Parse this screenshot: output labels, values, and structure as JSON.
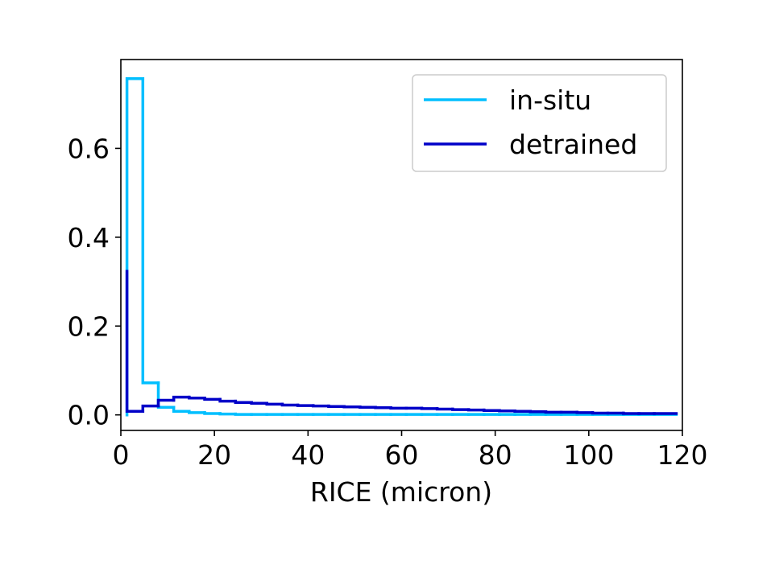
{
  "chart_data": {
    "type": "line",
    "subtype": "step-histogram",
    "title": "",
    "xlabel": "RICE (micron)",
    "ylabel": "",
    "xlim": [
      0,
      120
    ],
    "ylim": [
      -0.035,
      0.8
    ],
    "x_ticks": [
      0,
      20,
      40,
      60,
      80,
      100,
      120
    ],
    "x_tick_labels": [
      "0",
      "20",
      "40",
      "60",
      "80",
      "100",
      "120"
    ],
    "y_ticks": [
      0.0,
      0.2,
      0.4,
      0.6
    ],
    "y_tick_labels": [
      "0.0",
      "0.2",
      "0.4",
      "0.6"
    ],
    "grid": false,
    "legend_position": "top-right",
    "bin_edges": [
      1.3,
      4.7,
      8.0,
      11.3,
      14.6,
      17.9,
      21.2,
      24.5,
      27.9,
      31.2,
      34.5,
      37.8,
      41.1,
      44.4,
      47.7,
      51.1,
      54.4,
      57.7,
      61.0,
      64.3,
      67.6,
      70.9,
      74.3,
      77.6,
      80.9,
      84.2,
      87.5,
      90.8,
      94.1,
      97.5,
      100.8,
      104.1,
      107.4,
      110.7,
      114.0,
      118.7
    ],
    "series": [
      {
        "name": "in-situ",
        "color": "#00bfff",
        "values": [
          0.757,
          0.072,
          0.017,
          0.008,
          0.005,
          0.003,
          0.002,
          0.001,
          0.001,
          0.001,
          0.001,
          0.001,
          0.001,
          0.001,
          0.001,
          0.001,
          0.001,
          0.001,
          0.001,
          0.001,
          0.001,
          0.001,
          0.001,
          0.001,
          0.001,
          0.001,
          0.001,
          0.001,
          0.001,
          0.001,
          0.001,
          0.001,
          0.001,
          0.001,
          0.001
        ]
      },
      {
        "name": "detrained",
        "color": "#0000c8",
        "start_value": 0.323,
        "values": [
          0.008,
          0.02,
          0.033,
          0.04,
          0.038,
          0.035,
          0.031,
          0.028,
          0.026,
          0.024,
          0.022,
          0.021,
          0.02,
          0.019,
          0.018,
          0.017,
          0.016,
          0.015,
          0.015,
          0.014,
          0.013,
          0.012,
          0.011,
          0.01,
          0.009,
          0.008,
          0.007,
          0.006,
          0.006,
          0.005,
          0.004,
          0.004,
          0.003,
          0.003,
          0.003
        ]
      }
    ]
  }
}
